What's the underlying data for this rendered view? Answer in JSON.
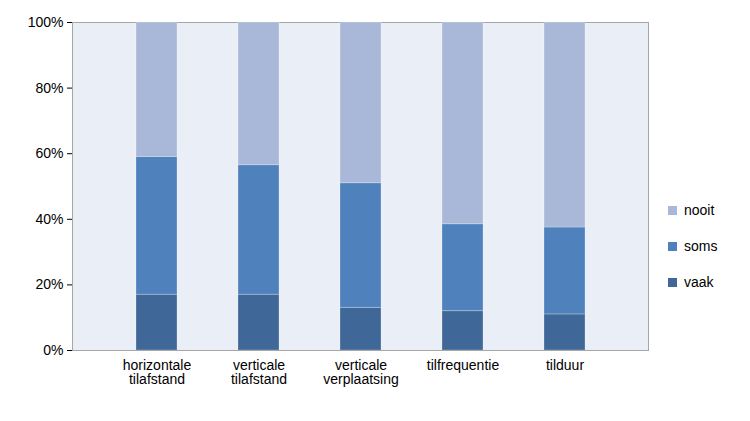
{
  "chart_data": {
    "type": "bar",
    "stacked": true,
    "categories": [
      "horizontale tilafstand",
      "verticale tilafstand",
      "verticale verplaatsing",
      "tilfrequentie",
      "tilduur"
    ],
    "series": [
      {
        "name": "vaak",
        "color": "#3f6797",
        "values": [
          17,
          17,
          13,
          12,
          11
        ]
      },
      {
        "name": "soms",
        "color": "#4f81bd",
        "values": [
          42,
          39.5,
          38,
          26.5,
          26.5
        ]
      },
      {
        "name": "nooit",
        "color": "#a9b8d8",
        "values": [
          41,
          43.5,
          49,
          61.5,
          62.5
        ]
      }
    ],
    "ylim": [
      0,
      100
    ],
    "yticks": [
      {
        "value": 0,
        "label": "0%"
      },
      {
        "value": 20,
        "label": "20%"
      },
      {
        "value": 40,
        "label": "40%"
      },
      {
        "value": 60,
        "label": "60%"
      },
      {
        "value": 80,
        "label": "80%"
      },
      {
        "value": 100,
        "label": "100%"
      }
    ],
    "grid": false,
    "legend": "right"
  }
}
